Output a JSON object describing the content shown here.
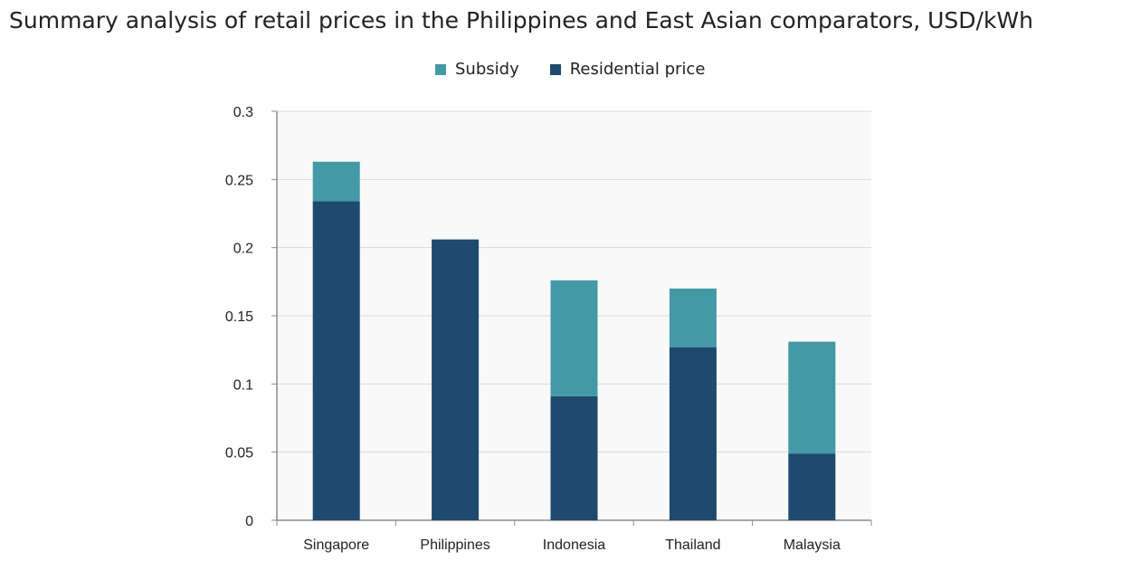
{
  "chart_data": {
    "type": "bar",
    "stacked": true,
    "title": "Summary analysis of retail prices in the Philippines and East Asian comparators, USD/kWh",
    "xlabel": "",
    "ylabel": "",
    "categories": [
      "Singapore",
      "Philippines",
      "Indonesia",
      "Thailand",
      "Malaysia"
    ],
    "series": [
      {
        "name": "Residential price",
        "values": [
          0.234,
          0.206,
          0.091,
          0.127,
          0.049
        ],
        "color": "#1d4a6e"
      },
      {
        "name": "Subsidy",
        "values": [
          0.029,
          0.0,
          0.085,
          0.043,
          0.082
        ],
        "color": "#4499a6"
      }
    ],
    "legend_order": [
      "Subsidy",
      "Residential price"
    ],
    "legend_position": "top-center",
    "ylim": [
      0,
      0.3
    ],
    "yticks": [
      "0",
      "0.05",
      "0.1",
      "0.15",
      "0.2",
      "0.25",
      "0.3"
    ],
    "ytick_values": [
      0,
      0.05,
      0.1,
      0.15,
      0.2,
      0.25,
      0.3
    ],
    "grid": true,
    "plot_background": "#f9f9f9",
    "grid_color": "#d9d9d9",
    "axis_color": "#8c8c8c"
  }
}
